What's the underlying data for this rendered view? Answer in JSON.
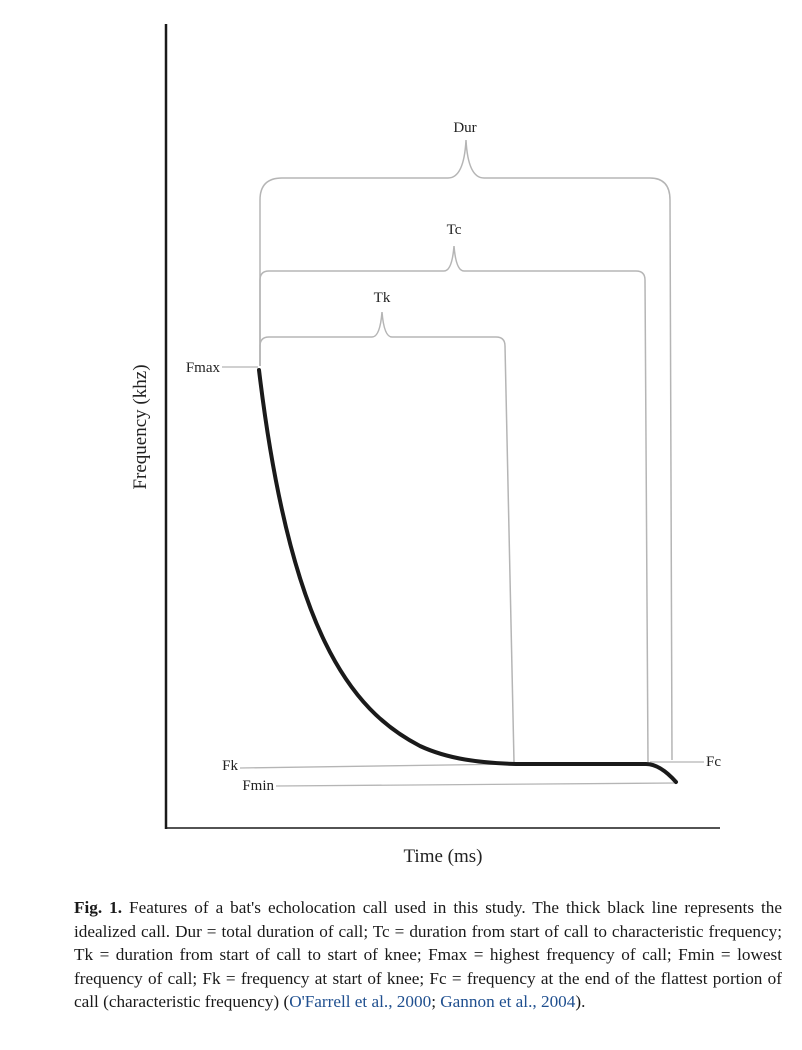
{
  "diagram": {
    "xlabel": "Time (ms)",
    "ylabel": "Frequency (khz)",
    "labels": {
      "dur": "Dur",
      "tc": "Tc",
      "tk": "Tk",
      "fmax": "Fmax",
      "fk": "Fk",
      "fmin": "Fmin",
      "fc": "Fc"
    },
    "colors": {
      "call_line": "#1a1a1a",
      "bracket": "#b5b5b5",
      "axis": "#1a1a1a",
      "reference_link": "#1f4f8f"
    }
  },
  "caption": {
    "label": "Fig. 1.",
    "text": "Features of a bat's echolocation call used in this study. The thick black line represents the idealized call. Dur = total duration of call; Tc = duration from start of call to characteristic frequency; Tk = duration from start of call to start of knee; Fmax = highest frequency of call; Fmin = lowest frequency of call; Fk = frequency at start of knee; Fc = frequency at the end of the flattest portion of call (characteristic frequency) (",
    "ref1": "O'Farrell et al., 2000",
    "separator": "; ",
    "ref2": "Gannon et al., 2004",
    "ending": ")."
  }
}
